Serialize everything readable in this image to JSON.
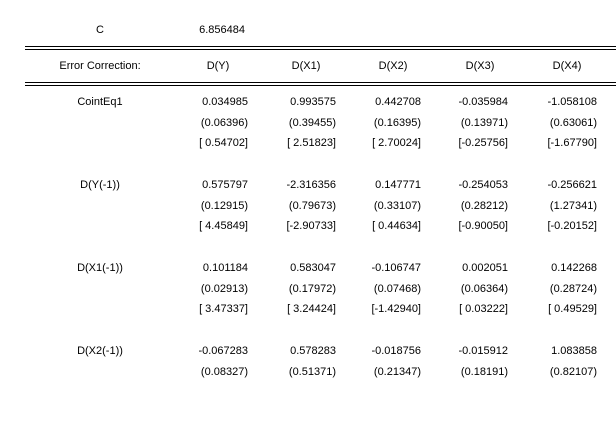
{
  "top": {
    "label": "C",
    "value": "6.856484"
  },
  "header": [
    "Error Correction:",
    "D(Y)",
    "D(X1)",
    "D(X2)",
    "D(X3)",
    "D(X4)"
  ],
  "blocks": [
    {
      "label": "CointEq1",
      "rows": [
        [
          "0.034985",
          "0.993575",
          "0.442708",
          "-0.035984",
          "-1.058108"
        ],
        [
          "(0.06396)",
          "(0.39455)",
          "(0.16395)",
          "(0.13971)",
          "(0.63061)"
        ],
        [
          "[ 0.54702]",
          "[ 2.51823]",
          "[ 2.70024]",
          "[-0.25756]",
          "[-1.67790]"
        ]
      ]
    },
    {
      "label": "D(Y(-1))",
      "rows": [
        [
          "0.575797",
          "-2.316356",
          "0.147771",
          "-0.254053",
          "-0.256621"
        ],
        [
          "(0.12915)",
          "(0.79673)",
          "(0.33107)",
          "(0.28212)",
          "(1.27341)"
        ],
        [
          "[ 4.45849]",
          "[-2.90733]",
          "[ 0.44634]",
          "[-0.90050]",
          "[-0.20152]"
        ]
      ]
    },
    {
      "label": "D(X1(-1))",
      "rows": [
        [
          "0.101184",
          "0.583047",
          "-0.106747",
          "0.002051",
          "0.142268"
        ],
        [
          "(0.02913)",
          "(0.17972)",
          "(0.07468)",
          "(0.06364)",
          "(0.28724)"
        ],
        [
          "[ 3.47337]",
          "[ 3.24424]",
          "[-1.42940]",
          "[ 0.03222]",
          "[ 0.49529]"
        ]
      ]
    },
    {
      "label": "D(X2(-1))",
      "rows": [
        [
          "-0.067283",
          "0.578283",
          "-0.018756",
          "-0.015912",
          "1.083858"
        ],
        [
          "(0.08327)",
          "(0.51371)",
          "(0.21347)",
          "(0.18191)",
          "(0.82107)"
        ]
      ]
    }
  ]
}
